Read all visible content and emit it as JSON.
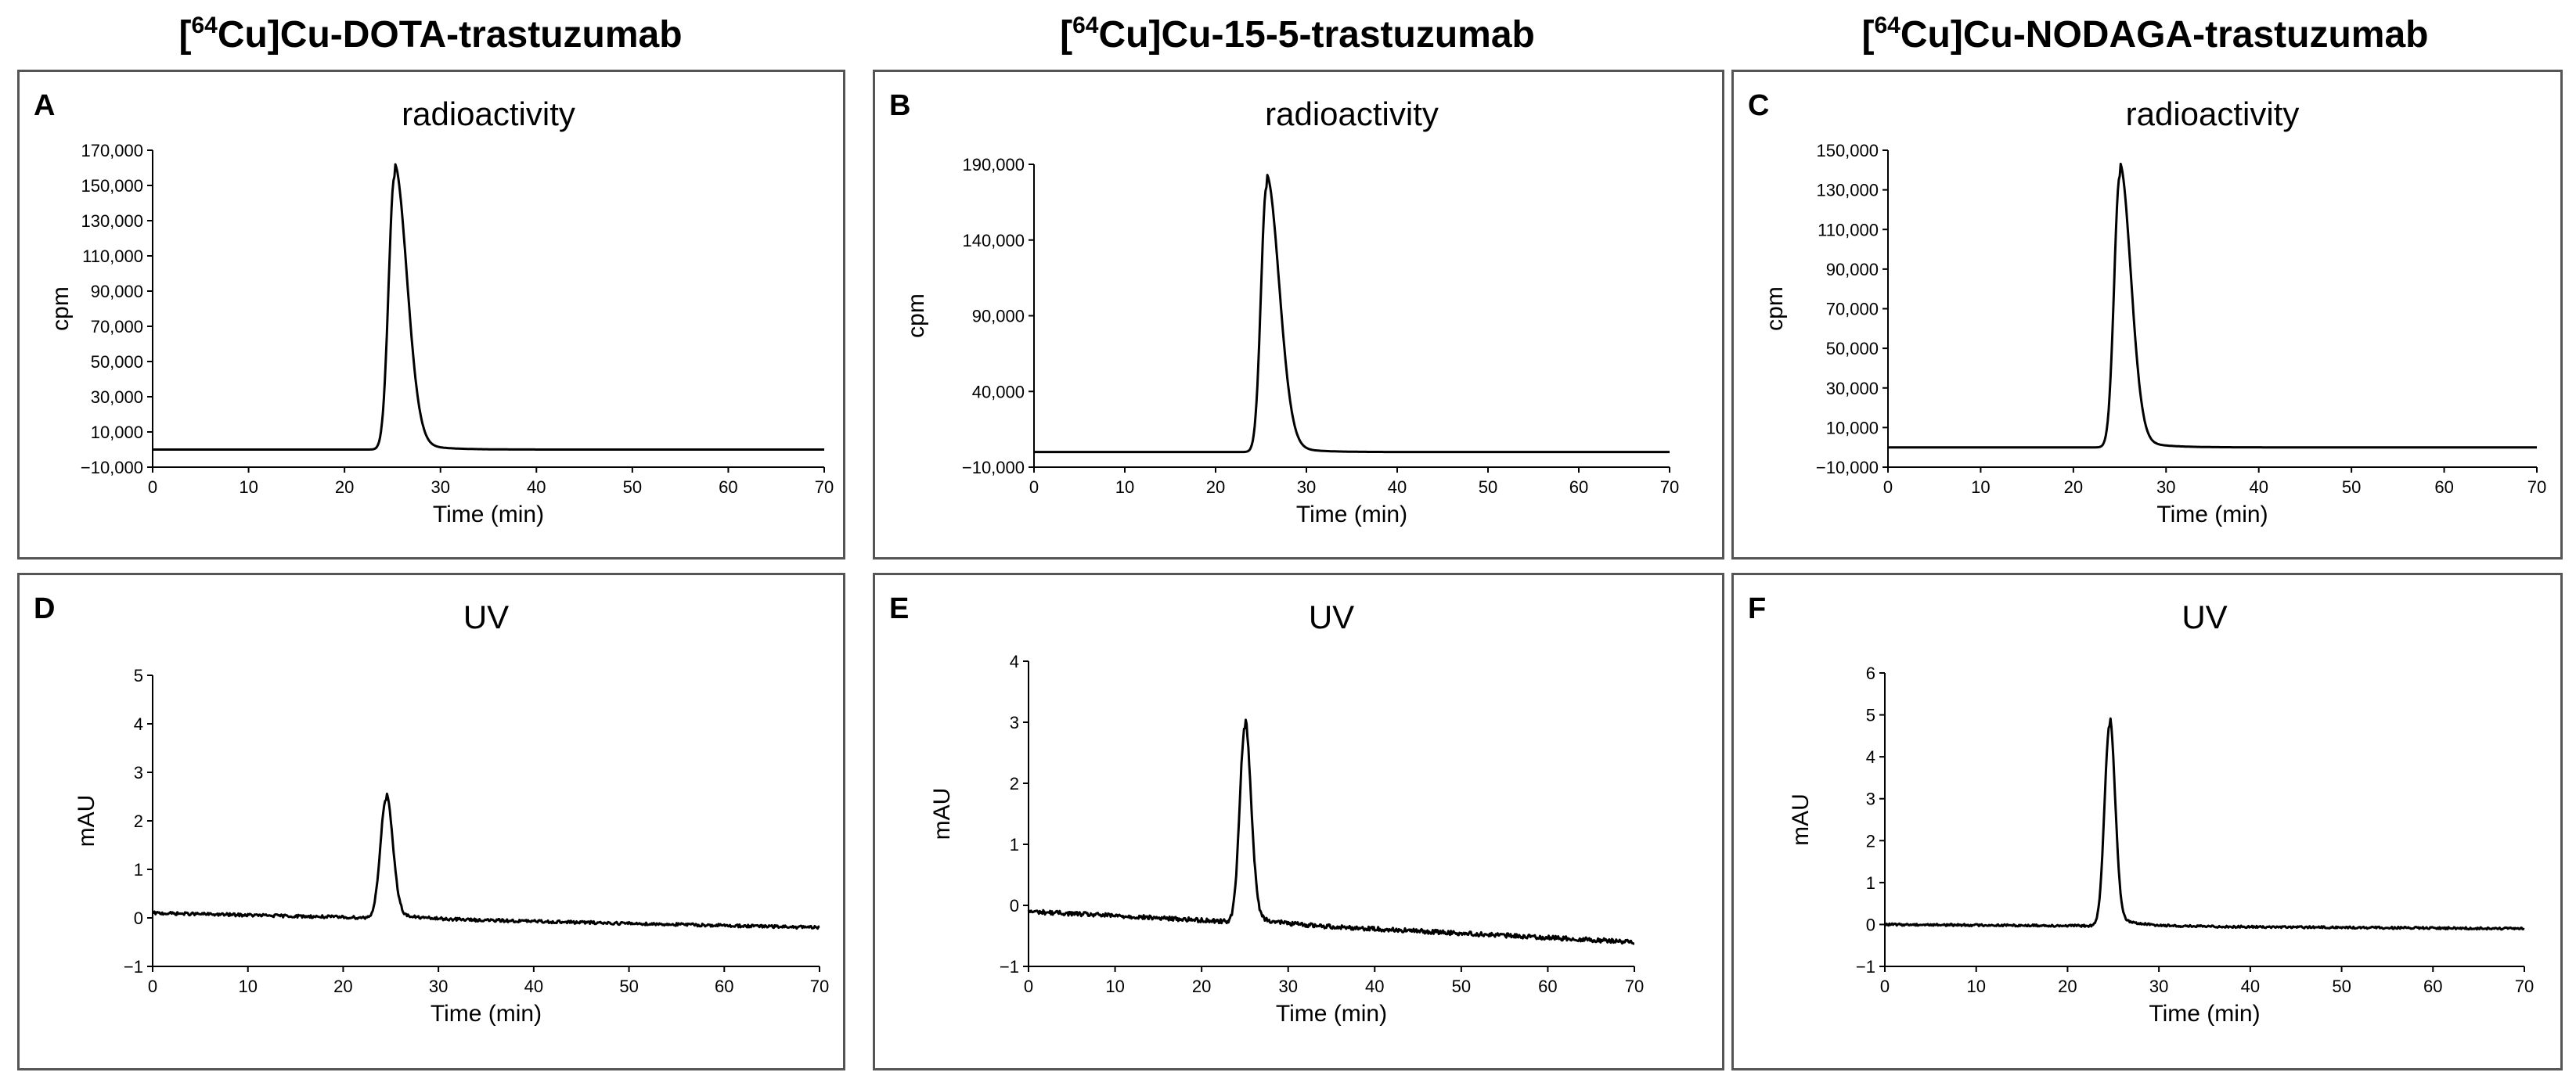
{
  "figure": {
    "column_titles": [
      {
        "isotope_mass": "64",
        "pre": "[",
        "element": "Cu]Cu-DOTA-trastuzumab"
      },
      {
        "isotope_mass": "64",
        "pre": "[",
        "element": "Cu]Cu-15-5-trastuzumab"
      },
      {
        "isotope_mass": "64",
        "pre": "[",
        "element": "Cu]Cu-NODAGA-trastuzumab"
      }
    ]
  },
  "chart_data": [
    {
      "panel": "A",
      "type": "line",
      "title": "radioactivity",
      "xlabel": "Time (min)",
      "ylabel": "cpm",
      "xlim": [
        0,
        70
      ],
      "xticks": [
        0,
        10,
        20,
        30,
        40,
        50,
        60,
        70
      ],
      "ylim": [
        -10000,
        170000
      ],
      "yticks": [
        -10000,
        10000,
        30000,
        50000,
        70000,
        90000,
        110000,
        130000,
        150000,
        170000
      ],
      "ytick_labels": [
        "−10,000",
        "10,000",
        "30,000",
        "50,000",
        "70,000",
        "90,000",
        "110,000",
        "130,000",
        "150,000",
        "170,000"
      ],
      "series": [
        {
          "name": "radioactivity",
          "baseline": 0,
          "peak_time": 25.2,
          "peak_height": 155000,
          "rise_width": 0.6,
          "tail_width": 1.3,
          "noise": 0
        }
      ]
    },
    {
      "panel": "B",
      "type": "line",
      "title": "radioactivity",
      "xlabel": "Time (min)",
      "ylabel": "cpm",
      "xlim": [
        0,
        70
      ],
      "xticks": [
        0,
        10,
        20,
        30,
        40,
        50,
        60,
        70
      ],
      "ylim": [
        -10000,
        190000
      ],
      "yticks": [
        -10000,
        40000,
        90000,
        140000,
        190000
      ],
      "ytick_labels": [
        "−10,000",
        "40,000",
        "90,000",
        "140,000",
        "190,000"
      ],
      "series": [
        {
          "name": "radioactivity",
          "baseline": 0,
          "peak_time": 25.6,
          "peak_height": 175000,
          "rise_width": 0.6,
          "tail_width": 1.4,
          "noise": 0
        }
      ]
    },
    {
      "panel": "C",
      "type": "line",
      "title": "radioactivity",
      "xlabel": "Time (min)",
      "ylabel": "cpm",
      "xlim": [
        0,
        70
      ],
      "xticks": [
        0,
        10,
        20,
        30,
        40,
        50,
        60,
        70
      ],
      "ylim": [
        -10000,
        150000
      ],
      "yticks": [
        -10000,
        10000,
        30000,
        50000,
        70000,
        90000,
        110000,
        130000,
        150000
      ],
      "ytick_labels": [
        "−10,000",
        "10,000",
        "30,000",
        "50,000",
        "70,000",
        "90,000",
        "110,000",
        "130,000",
        "150,000"
      ],
      "series": [
        {
          "name": "radioactivity",
          "baseline": 0,
          "peak_time": 25.0,
          "peak_height": 137000,
          "rise_width": 0.6,
          "tail_width": 1.2,
          "noise": 0
        }
      ]
    },
    {
      "panel": "D",
      "type": "line",
      "title": "UV",
      "xlabel": "Time (min)",
      "ylabel": "mAU",
      "xlim": [
        0,
        70
      ],
      "xticks": [
        0,
        10,
        20,
        30,
        40,
        50,
        60,
        70
      ],
      "ylim": [
        -1,
        5
      ],
      "yticks": [
        -1,
        0,
        1,
        2,
        3,
        4,
        5
      ],
      "ytick_labels": [
        "−1",
        "0",
        "1",
        "2",
        "3",
        "4",
        "5"
      ],
      "series": [
        {
          "name": "UV",
          "baseline_start": 0.1,
          "baseline_end": -0.2,
          "peak_time": 24.5,
          "peak_height": 2.45,
          "rise_width": 0.6,
          "tail_width": 0.7,
          "noise": 0.03
        }
      ]
    },
    {
      "panel": "E",
      "type": "line",
      "title": "UV",
      "xlabel": "Time (min)",
      "ylabel": "mAU",
      "xlim": [
        0,
        70
      ],
      "xticks": [
        0,
        10,
        20,
        30,
        40,
        50,
        60,
        70
      ],
      "ylim": [
        -1,
        4
      ],
      "yticks": [
        -1,
        0,
        1,
        2,
        3,
        4
      ],
      "ytick_labels": [
        "−1",
        "0",
        "1",
        "2",
        "3",
        "4"
      ],
      "series": [
        {
          "name": "UV",
          "baseline_start": -0.1,
          "baseline_end": -0.6,
          "peak_time": 25.0,
          "peak_height": 3.2,
          "rise_width": 0.6,
          "tail_width": 0.7,
          "noise": 0.035
        }
      ]
    },
    {
      "panel": "F",
      "type": "line",
      "title": "UV",
      "xlabel": "Time (min)",
      "ylabel": "mAU",
      "xlim": [
        0,
        70
      ],
      "xticks": [
        0,
        10,
        20,
        30,
        40,
        50,
        60,
        70
      ],
      "ylim": [
        -1,
        6
      ],
      "yticks": [
        -1,
        0,
        1,
        2,
        3,
        4,
        5,
        6
      ],
      "ytick_labels": [
        "−1",
        "0",
        "1",
        "2",
        "3",
        "4",
        "5",
        "6"
      ],
      "series": [
        {
          "name": "UV",
          "baseline_start": 0.0,
          "baseline_end": -0.1,
          "peak_time": 24.6,
          "peak_height": 4.8,
          "rise_width": 0.55,
          "tail_width": 0.6,
          "noise": 0.025
        }
      ]
    }
  ]
}
